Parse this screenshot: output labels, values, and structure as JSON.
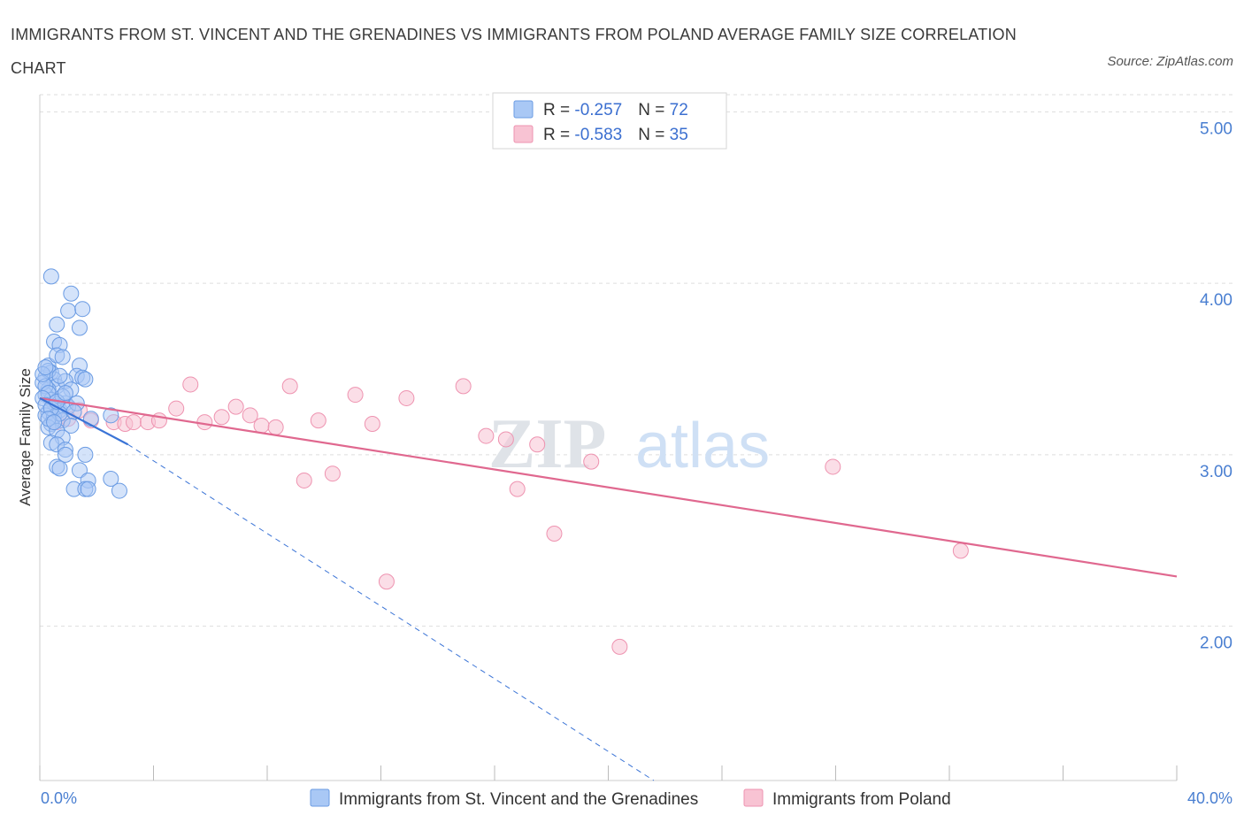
{
  "title": "IMMIGRANTS FROM ST. VINCENT AND THE GRENADINES VS IMMIGRANTS FROM POLAND AVERAGE FAMILY SIZE CORRELATION CHART",
  "source": "Source: ZipAtlas.com",
  "watermark": {
    "zip": "ZIP",
    "atlas": "atlas"
  },
  "colors": {
    "blue_fill": "#a9c8f5",
    "blue_stroke": "#6a9be3",
    "blue_line": "#3b74d6",
    "pink_fill": "#f8c3d3",
    "pink_stroke": "#ee93b0",
    "pink_line": "#e0688f",
    "grid": "#dddddd",
    "tick_text": "#4a7fd1"
  },
  "legend": {
    "rows": [
      {
        "r_label": "R = ",
        "r_value": "-0.257",
        "n_label": "N = ",
        "n_value": "72"
      },
      {
        "r_label": "R = ",
        "r_value": "-0.583",
        "n_label": "N = ",
        "n_value": "35"
      }
    ]
  },
  "chart_data": {
    "type": "scatter",
    "title": "IMMIGRANTS FROM ST. VINCENT AND THE GRENADINES VS IMMIGRANTS FROM POLAND AVERAGE FAMILY SIZE CORRELATION CHART",
    "xlabel": "",
    "ylabel": "Average Family Size",
    "xlim": [
      0,
      40
    ],
    "ylim": [
      1.1,
      5.1
    ],
    "x_tick_labels": [
      "0.0%",
      "40.0%"
    ],
    "y_ticks": [
      2.0,
      3.0,
      4.0,
      5.0
    ],
    "y_tick_labels": [
      "2.00",
      "3.00",
      "4.00",
      "5.00"
    ],
    "grid": true,
    "legend_position": "top-center",
    "series": [
      {
        "name": "Immigrants from St. Vincent and the Grenadines",
        "color": "#a9c8f5",
        "trend": {
          "x": [
            0.0,
            3.1
          ],
          "y": [
            3.33,
            3.06
          ],
          "extended_x": [
            3.1,
            21.6
          ],
          "extended_y": [
            3.06,
            1.1
          ]
        },
        "points": [
          [
            0.2,
            3.45
          ],
          [
            0.3,
            3.52
          ],
          [
            0.4,
            3.48
          ],
          [
            0.5,
            3.44
          ],
          [
            0.6,
            3.4
          ],
          [
            0.3,
            3.38
          ],
          [
            0.2,
            3.35
          ],
          [
            0.4,
            3.32
          ],
          [
            0.5,
            3.3
          ],
          [
            0.6,
            3.28
          ],
          [
            0.7,
            3.26
          ],
          [
            0.3,
            3.25
          ],
          [
            0.2,
            3.23
          ],
          [
            0.5,
            3.22
          ],
          [
            0.8,
            3.2
          ],
          [
            0.4,
            3.18
          ],
          [
            0.3,
            3.16
          ],
          [
            0.6,
            3.14
          ],
          [
            0.9,
            3.3
          ],
          [
            1.0,
            3.28
          ],
          [
            0.4,
            4.04
          ],
          [
            1.1,
            3.94
          ],
          [
            1.0,
            3.84
          ],
          [
            1.5,
            3.85
          ],
          [
            0.6,
            3.76
          ],
          [
            1.4,
            3.74
          ],
          [
            0.5,
            3.66
          ],
          [
            0.7,
            3.64
          ],
          [
            0.6,
            3.58
          ],
          [
            0.8,
            3.57
          ],
          [
            0.3,
            3.49
          ],
          [
            1.4,
            3.52
          ],
          [
            1.3,
            3.46
          ],
          [
            1.5,
            3.45
          ],
          [
            1.6,
            3.44
          ],
          [
            0.9,
            3.43
          ],
          [
            1.1,
            3.38
          ],
          [
            1.3,
            3.3
          ],
          [
            0.7,
            3.24
          ],
          [
            1.2,
            3.25
          ],
          [
            1.8,
            3.21
          ],
          [
            2.5,
            3.23
          ],
          [
            1.1,
            3.17
          ],
          [
            0.8,
            3.1
          ],
          [
            0.4,
            3.07
          ],
          [
            0.6,
            3.06
          ],
          [
            0.9,
            3.03
          ],
          [
            1.6,
            3.0
          ],
          [
            0.9,
            3.0
          ],
          [
            0.6,
            2.93
          ],
          [
            0.7,
            2.92
          ],
          [
            1.4,
            2.91
          ],
          [
            2.5,
            2.86
          ],
          [
            1.7,
            2.85
          ],
          [
            1.2,
            2.8
          ],
          [
            1.6,
            2.8
          ],
          [
            1.7,
            2.8
          ],
          [
            2.8,
            2.79
          ],
          [
            0.1,
            3.42
          ],
          [
            0.2,
            3.4
          ],
          [
            0.3,
            3.36
          ],
          [
            0.1,
            3.33
          ],
          [
            0.2,
            3.29
          ],
          [
            0.4,
            3.27
          ],
          [
            0.3,
            3.21
          ],
          [
            0.5,
            3.19
          ],
          [
            0.1,
            3.47
          ],
          [
            0.2,
            3.51
          ],
          [
            0.7,
            3.46
          ],
          [
            0.8,
            3.34
          ],
          [
            0.6,
            3.31
          ],
          [
            0.9,
            3.36
          ]
        ]
      },
      {
        "name": "Immigrants from Poland",
        "color": "#f8c3d3",
        "trend": {
          "x": [
            0.0,
            40.0
          ],
          "y": [
            3.33,
            2.29
          ]
        },
        "points": [
          [
            0.6,
            3.19
          ],
          [
            1.0,
            3.21
          ],
          [
            1.8,
            3.2
          ],
          [
            2.6,
            3.19
          ],
          [
            3.0,
            3.18
          ],
          [
            3.3,
            3.19
          ],
          [
            3.8,
            3.19
          ],
          [
            4.2,
            3.2
          ],
          [
            4.8,
            3.27
          ],
          [
            5.3,
            3.41
          ],
          [
            5.8,
            3.19
          ],
          [
            6.4,
            3.22
          ],
          [
            6.9,
            3.28
          ],
          [
            7.4,
            3.23
          ],
          [
            7.8,
            3.17
          ],
          [
            8.3,
            3.16
          ],
          [
            8.8,
            3.4
          ],
          [
            9.3,
            2.85
          ],
          [
            9.8,
            3.2
          ],
          [
            10.3,
            2.89
          ],
          [
            11.1,
            3.35
          ],
          [
            11.7,
            3.18
          ],
          [
            12.2,
            2.26
          ],
          [
            12.9,
            3.33
          ],
          [
            14.9,
            3.4
          ],
          [
            15.7,
            3.11
          ],
          [
            16.4,
            3.09
          ],
          [
            16.8,
            2.8
          ],
          [
            17.5,
            3.06
          ],
          [
            18.1,
            2.54
          ],
          [
            19.4,
            2.96
          ],
          [
            20.4,
            1.88
          ],
          [
            27.9,
            2.93
          ],
          [
            32.4,
            2.44
          ],
          [
            1.4,
            3.26
          ]
        ]
      }
    ]
  },
  "bottom_legend": [
    {
      "label": "Immigrants from St. Vincent and the Grenadines"
    },
    {
      "label": "Immigrants from Poland"
    }
  ]
}
